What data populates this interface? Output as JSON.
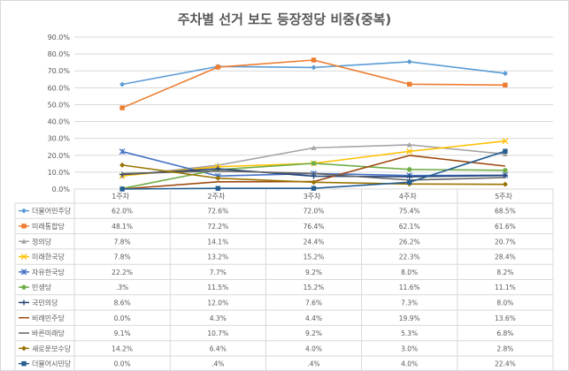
{
  "chart_data": {
    "type": "line",
    "title": "주차별 선거 보도 등장정당 비중(중복)",
    "xlabel": "",
    "ylabel": "",
    "ylim": [
      0,
      90
    ],
    "y_ticks": [
      "0.0%",
      "10.0%",
      "20.0%",
      "30.0%",
      "40.0%",
      "50.0%",
      "60.0%",
      "70.0%",
      "80.0%",
      "90.0%"
    ],
    "categories": [
      "1주차",
      "2주차",
      "3주차",
      "4주차",
      "5주차"
    ],
    "grid": true,
    "legend": "data-table-below",
    "series": [
      {
        "name": "더불어민주당",
        "color": "#5b9bd5",
        "marker": "diamond",
        "values": [
          62.0,
          72.6,
          72.0,
          75.4,
          68.5
        ],
        "labels": [
          "62.0%",
          "72.6%",
          "72.0%",
          "75.4%",
          "68.5%"
        ]
      },
      {
        "name": "미래통합당",
        "color": "#ed7d31",
        "marker": "square",
        "values": [
          48.1,
          72.2,
          76.4,
          62.1,
          61.6
        ],
        "labels": [
          "48.1%",
          "72.2%",
          "76.4%",
          "62.1%",
          "61.6%"
        ]
      },
      {
        "name": "정의당",
        "color": "#a5a5a5",
        "marker": "triangle",
        "values": [
          7.8,
          14.1,
          24.4,
          26.2,
          20.7
        ],
        "labels": [
          "7.8%",
          "14.1%",
          "24.4%",
          "26.2%",
          "20.7%"
        ]
      },
      {
        "name": "미래한국당",
        "color": "#ffc000",
        "marker": "x",
        "values": [
          7.8,
          13.2,
          15.2,
          22.3,
          28.4
        ],
        "labels": [
          "7.8%",
          "13.2%",
          "15.2%",
          "22.3%",
          "28.4%"
        ]
      },
      {
        "name": "자유한국당",
        "color": "#4472c4",
        "marker": "star",
        "values": [
          22.2,
          7.7,
          9.2,
          8.0,
          8.2
        ],
        "labels": [
          "22.2%",
          "7.7%",
          "9.2%",
          "8.0%",
          "8.2%"
        ]
      },
      {
        "name": "민생당",
        "color": "#70ad47",
        "marker": "circle",
        "values": [
          0.3,
          11.5,
          15.2,
          11.6,
          11.1
        ],
        "labels": [
          ".3%",
          "11.5%",
          "15.2%",
          "11.6%",
          "11.1%"
        ]
      },
      {
        "name": "국민의당",
        "color": "#264478",
        "marker": "plus",
        "values": [
          8.6,
          12.0,
          7.6,
          7.3,
          8.0
        ],
        "labels": [
          "8.6%",
          "12.0%",
          "7.6%",
          "7.3%",
          "8.0%"
        ]
      },
      {
        "name": "비례민주당",
        "color": "#9e480e",
        "marker": "none",
        "values": [
          0.0,
          4.3,
          4.4,
          19.9,
          13.6
        ],
        "labels": [
          "0.0%",
          "4.3%",
          "4.4%",
          "19.9%",
          "13.6%"
        ]
      },
      {
        "name": "바른미래당",
        "color": "#636363",
        "marker": "none",
        "values": [
          9.1,
          10.7,
          9.2,
          5.3,
          6.8
        ],
        "labels": [
          "9.1%",
          "10.7%",
          "9.2%",
          "5.3%",
          "6.8%"
        ]
      },
      {
        "name": "새로운보수당",
        "color": "#997300",
        "marker": "diamond",
        "values": [
          14.2,
          6.4,
          4.0,
          3.0,
          2.8
        ],
        "labels": [
          "14.2%",
          "6.4%",
          "4.0%",
          "3.0%",
          "2.8%"
        ]
      },
      {
        "name": "더불어시민당",
        "color": "#255e91",
        "marker": "square",
        "values": [
          0.0,
          0.4,
          0.4,
          4.0,
          22.4
        ],
        "labels": [
          "0.0%",
          ".4%",
          ".4%",
          "4.0%",
          "22.4%"
        ]
      }
    ]
  }
}
